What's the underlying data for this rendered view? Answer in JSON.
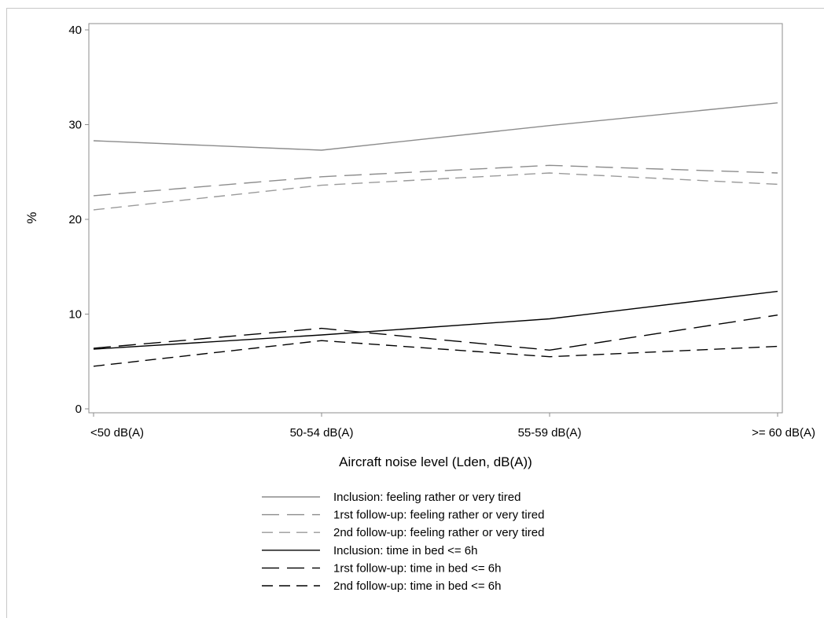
{
  "chart_data": {
    "type": "line",
    "categories": [
      "<50 dB(A)",
      "50-54 dB(A)",
      "55-59 dB(A)",
      ">= 60 dB(A)"
    ],
    "xlabel": "Aircraft noise level (Lden, dB(A))",
    "ylabel": "%",
    "ylim": [
      0,
      40
    ],
    "yticks": [
      0,
      10,
      20,
      30,
      40
    ],
    "grid": false,
    "legend_position": "bottom",
    "series": [
      {
        "name": "Inclusion: feeling rather or very tired",
        "values": [
          28.3,
          27.3,
          29.9,
          32.3
        ],
        "color": "#8c8c8c",
        "dash": "solid"
      },
      {
        "name": "1rst follow-up: feeling rather or very tired",
        "values": [
          22.5,
          24.5,
          25.7,
          24.9
        ],
        "color": "#8c8c8c",
        "dash": "long"
      },
      {
        "name": "2nd follow-up: feeling rather or very tired",
        "values": [
          21.0,
          23.6,
          24.9,
          23.7
        ],
        "color": "#9a9a9a",
        "dash": "medium"
      },
      {
        "name": "Inclusion: time in bed <= 6h",
        "values": [
          6.3,
          7.8,
          9.5,
          12.4
        ],
        "color": "#000000",
        "dash": "solid"
      },
      {
        "name": "1rst follow-up: time in bed <= 6h",
        "values": [
          6.4,
          8.5,
          6.2,
          9.9
        ],
        "color": "#000000",
        "dash": "long"
      },
      {
        "name": "2nd follow-up: time in bed <= 6h",
        "values": [
          4.5,
          7.2,
          5.5,
          6.6
        ],
        "color": "#000000",
        "dash": "medium"
      }
    ]
  }
}
